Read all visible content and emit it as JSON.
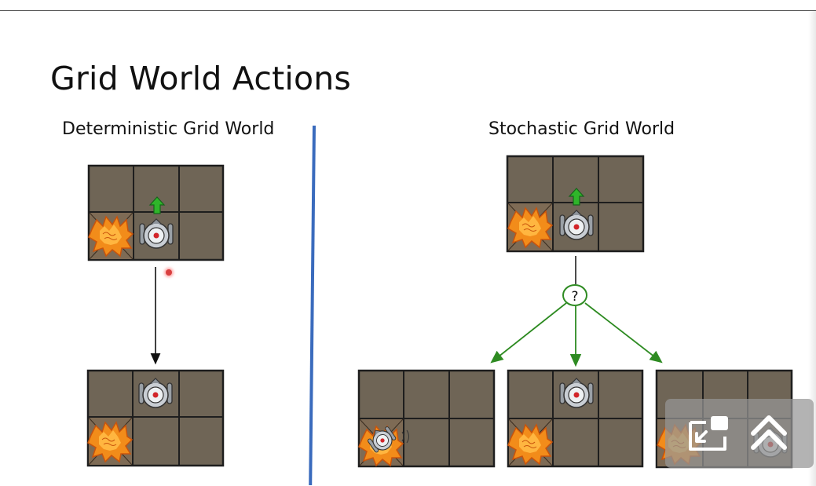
{
  "slide": {
    "title": "Grid World Actions",
    "left_heading": "Deterministic Grid World",
    "right_heading": "Stochastic Grid World",
    "chance_node_label": "?"
  },
  "colors": {
    "cell": "#6f6556",
    "cell_border": "#1e1e1e",
    "fire": "#f28c1a",
    "action_arrow": "#2fb52a",
    "chance": "#2e8b22",
    "divider": "#3a6bbd"
  },
  "icons": {
    "pip_button": "picture-in-picture-icon",
    "expand_button": "double-chevron-up-icon"
  }
}
